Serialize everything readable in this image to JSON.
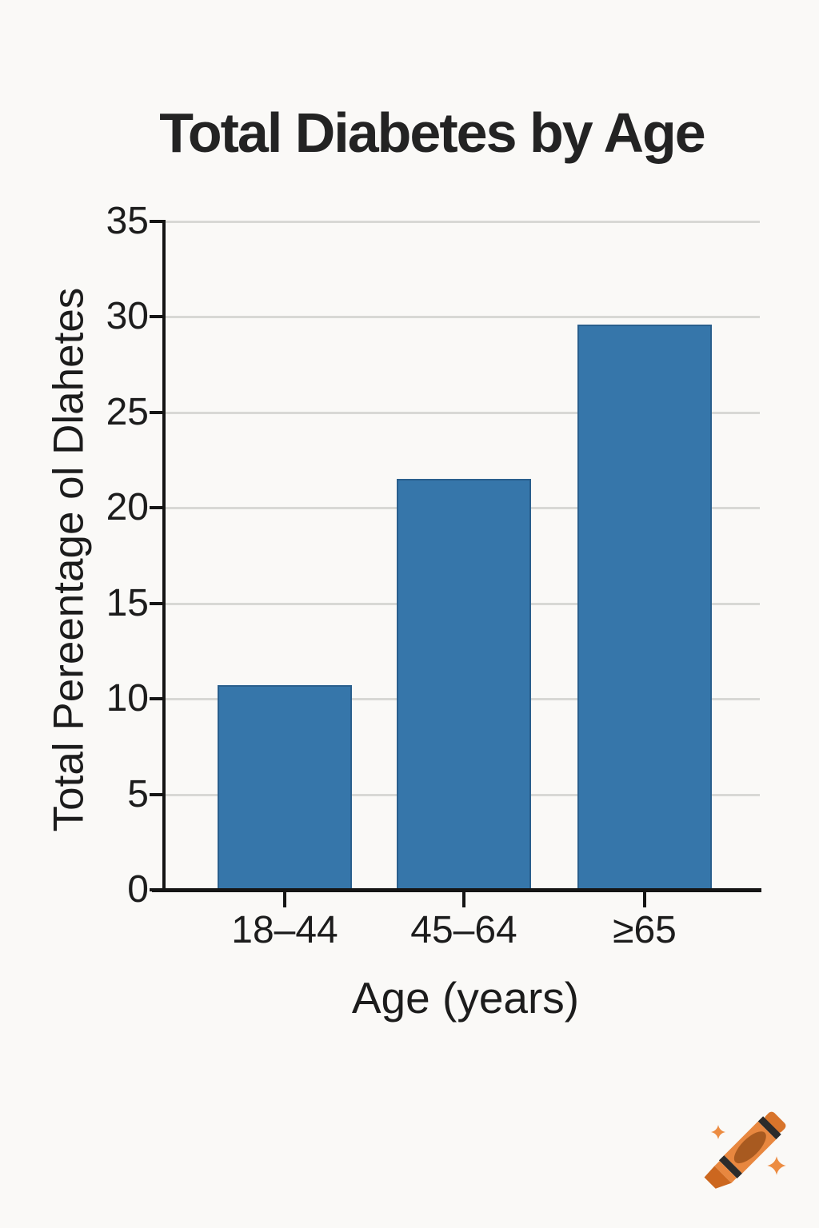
{
  "page": {
    "background": "#faf9f7"
  },
  "chart_data": {
    "type": "bar",
    "title": "Total Diabetes by Age",
    "categories": [
      "18–44",
      "45–64",
      "≥65"
    ],
    "values": [
      10.7,
      21.5,
      29.6
    ],
    "xlabel": "Age (years)",
    "ylabel": "Total Pereentage ol Dlahetes",
    "ylim": [
      0,
      35
    ],
    "yticks": [
      0,
      5,
      10,
      15,
      20,
      25,
      30,
      35
    ],
    "grid": "horizontal-only",
    "legend": "none",
    "bar_color": "#3676aa",
    "bar_edge_color": "#2a5f8d",
    "grid_color": "#d8d8d5",
    "axis_color": "#151515",
    "text_color": "#1c1c1c"
  },
  "watermark": {
    "icon": "crayon-icon",
    "crayon_body_color": "#e8873f",
    "crayon_oval_color": "#a85a20",
    "crayon_stripe_color": "#2b2b2b",
    "crayon_tip_color": "#cc671f",
    "sparkle_color": "#ec8c42"
  }
}
